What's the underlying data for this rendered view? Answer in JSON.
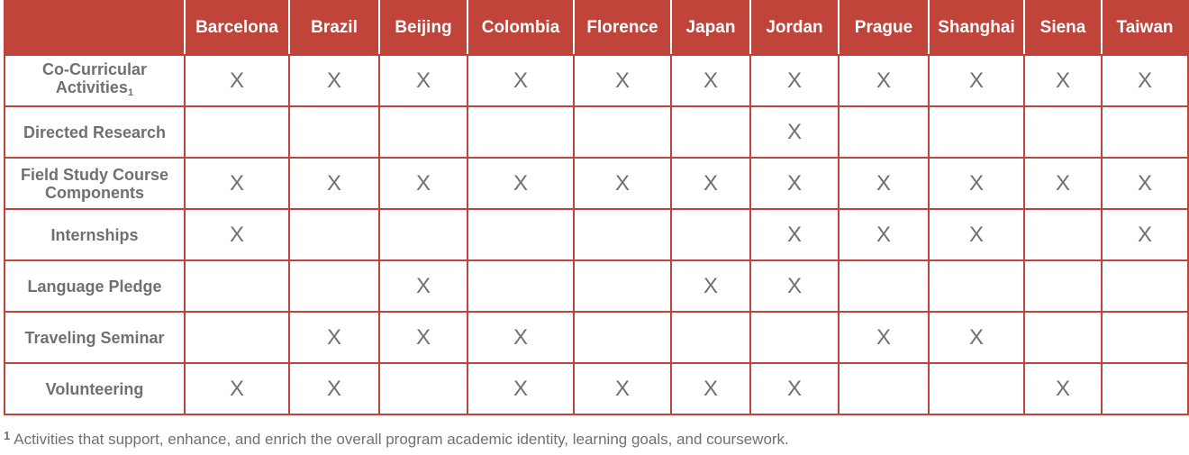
{
  "table": {
    "columns": [
      "Barcelona",
      "Brazil",
      "Beijing",
      "Colombia",
      "Florence",
      "Japan",
      "Jordan",
      "Prague",
      "Shanghai",
      "Siena",
      "Taiwan"
    ],
    "rows": [
      {
        "label": "Co-Curricular Activities",
        "footnote_ref": "1",
        "marks": [
          "X",
          "X",
          "X",
          "X",
          "X",
          "X",
          "X",
          "X",
          "X",
          "X",
          "X"
        ]
      },
      {
        "label": "Directed Research",
        "footnote_ref": "",
        "marks": [
          "",
          "",
          "",
          "",
          "",
          "",
          "X",
          "",
          "",
          "",
          ""
        ]
      },
      {
        "label": "Field Study Course Components",
        "footnote_ref": "",
        "marks": [
          "X",
          "X",
          "X",
          "X",
          "X",
          "X",
          "X",
          "X",
          "X",
          "X",
          "X"
        ]
      },
      {
        "label": "Internships",
        "footnote_ref": "",
        "marks": [
          "X",
          "",
          "",
          "",
          "",
          "",
          "X",
          "X",
          "X",
          "",
          "X"
        ]
      },
      {
        "label": "Language Pledge",
        "footnote_ref": "",
        "marks": [
          "",
          "",
          "X",
          "",
          "",
          "X",
          "X",
          "",
          "",
          "",
          ""
        ]
      },
      {
        "label": "Traveling Seminar",
        "footnote_ref": "",
        "marks": [
          "",
          "X",
          "X",
          "X",
          "",
          "",
          "",
          "X",
          "X",
          "",
          ""
        ]
      },
      {
        "label": "Volunteering",
        "footnote_ref": "",
        "marks": [
          "X",
          "X",
          "",
          "X",
          "X",
          "X",
          "X",
          "",
          "",
          "X",
          ""
        ]
      }
    ]
  },
  "footnote": {
    "number": "1",
    "text": "Activities that support, enhance, and enrich the overall program academic identity, learning goals, and coursework."
  },
  "colors": {
    "header_bg": "#c0443a",
    "border": "#c0443a",
    "text_gray": "#707070"
  }
}
